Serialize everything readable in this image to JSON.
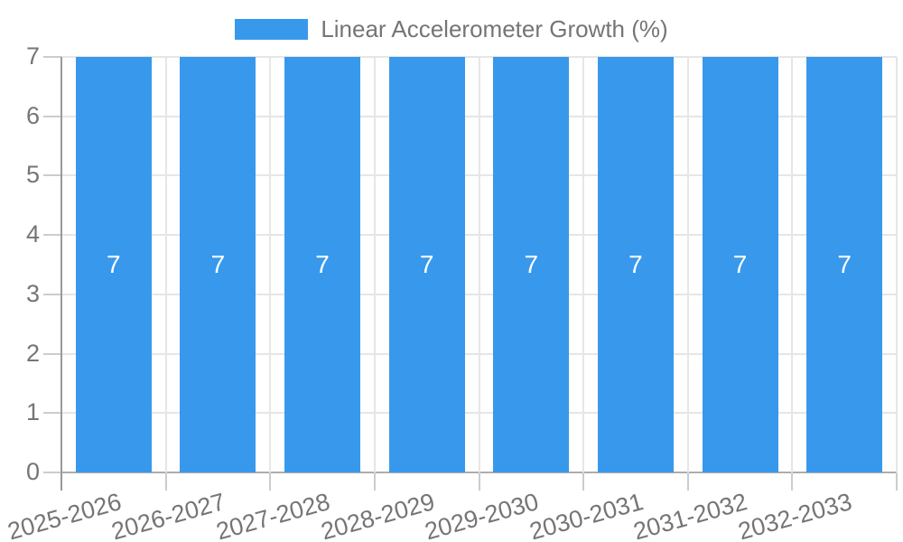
{
  "chart_data": {
    "type": "bar",
    "title": "Linear Accelerometer Growth (%)",
    "categories": [
      "2025-2026",
      "2026-2027",
      "2027-2028",
      "2028-2029",
      "2029-2030",
      "2030-2031",
      "2031-2032",
      "2032-2033"
    ],
    "series": [
      {
        "name": "Linear Accelerometer Growth (%)",
        "values": [
          7,
          7,
          7,
          7,
          7,
          7,
          7,
          7
        ]
      }
    ],
    "value_labels": [
      "7",
      "7",
      "7",
      "7",
      "7",
      "7",
      "7",
      "7"
    ],
    "xlabel": "",
    "ylabel": "",
    "ylim": [
      0,
      7
    ],
    "yticks": [
      0,
      1,
      2,
      3,
      4,
      5,
      6,
      7
    ],
    "grid": true,
    "legend_position": "top",
    "colors": {
      "bar": "#3899EC",
      "grid": "#E6E6E6",
      "tick": "#CCCCCC",
      "axis_left": "#999999",
      "axis_bottom": "#ADADAD",
      "text": "#757575",
      "value_label": "#FFFFFF",
      "background": "#FFFFFF"
    }
  }
}
